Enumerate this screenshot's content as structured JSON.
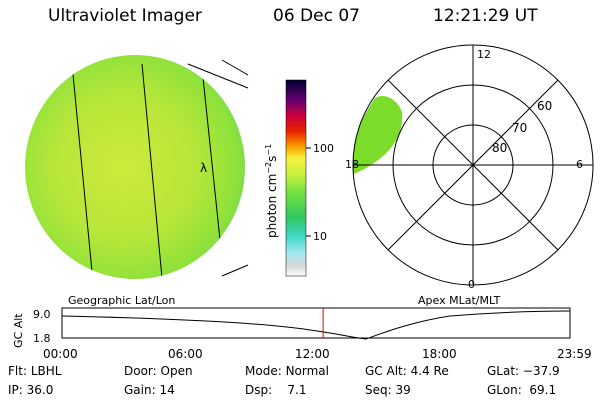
{
  "header": {
    "instrument": "Ultraviolet Imager",
    "date": "06 Dec 07",
    "time": "12:21:29 UT"
  },
  "colorbar": {
    "unit_label": "photon cm",
    "unit_exp1": "−2",
    "unit_s": "s",
    "unit_exp2": "−1",
    "tick_100": "100",
    "tick_10": "10"
  },
  "polar": {
    "mlt_top": "12",
    "mlt_left": "18",
    "mlt_right": "6",
    "mlt_bottom": "0",
    "lat_60": "60",
    "lat_70": "70",
    "lat_80": "80"
  },
  "globe": {
    "marker": "λ"
  },
  "panel_labels": {
    "left": "Geographic Lat/Lon",
    "right": "Apex MLat/MLT"
  },
  "timeline": {
    "ylabel": "GC Alt",
    "y_top": "9.0",
    "y_bottom": "1.8",
    "ticks": [
      "00:00",
      "06:00",
      "12:00",
      "18:00",
      "23:59"
    ],
    "current_fraction": 0.514
  },
  "info": {
    "flt_label": "Flt:",
    "flt_value": "LBHL",
    "ip_label": "IP:",
    "ip_value": "36.0",
    "door_label": "Door:",
    "door_value": "Open",
    "gain_label": "Gain:",
    "gain_value": "14",
    "mode_label": "Mode:",
    "mode_value": "Normal",
    "dsp_label": "Dsp:",
    "dsp_value": "7.1",
    "gcalt_label": "GC Alt:",
    "gcalt_value": "4.4 Re",
    "seq_label": "Seq:",
    "seq_value": "39",
    "glat_label": "GLat:",
    "glat_value": "−37.9",
    "glon_label": "GLon:",
    "glon_value": "69.1"
  },
  "colors": {
    "disk_green": "#8fe23a",
    "disk_yellow": "#c8ea3a",
    "auroral_green": "#7cdc2a",
    "marker_red": "#e00000"
  }
}
